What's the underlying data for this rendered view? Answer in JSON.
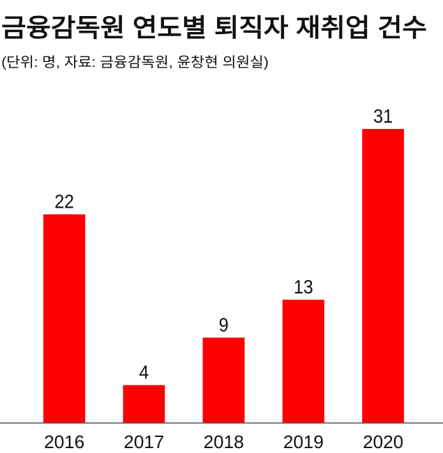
{
  "chart_data": {
    "type": "bar",
    "title": "금융감독원 연도별 퇴직자 재취업 건수",
    "subtitle": "(단위: 명, 자료: 금융감독원, 윤창현 의원실)",
    "categories": [
      "2016",
      "2017",
      "2018",
      "2019",
      "2020"
    ],
    "values": [
      22,
      4,
      9,
      13,
      31
    ],
    "color": "#ff0000"
  }
}
